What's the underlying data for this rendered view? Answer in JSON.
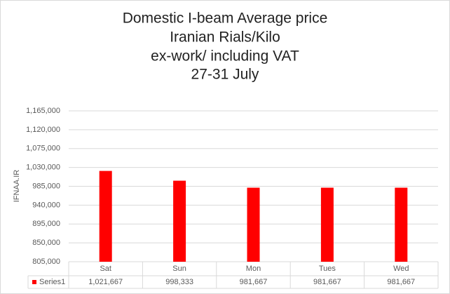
{
  "chart_data": {
    "type": "bar",
    "title": [
      "Domestic I-beam Average price",
      "Iranian Rials/Kilo",
      "ex-work/ including VAT",
      "27-31 July"
    ],
    "y_label": "IFNAA.IR",
    "categories": [
      "Sat",
      "Sun",
      "Mon",
      "Tues",
      "Wed"
    ],
    "series": [
      {
        "name": "Series1",
        "color": "#ff0000",
        "values": [
          1021667,
          998333,
          981667,
          981667,
          981667
        ],
        "value_labels": [
          "1,021,667",
          "998,333",
          "981,667",
          "981,667",
          "981,667"
        ]
      }
    ],
    "ylim": [
      805000,
      1165000
    ],
    "yticks": [
      {
        "value": 805000,
        "label": "805,000"
      },
      {
        "value": 850000,
        "label": "850,000"
      },
      {
        "value": 895000,
        "label": "895,000"
      },
      {
        "value": 940000,
        "label": "940,000"
      },
      {
        "value": 985000,
        "label": "985,000"
      },
      {
        "value": 1030000,
        "label": "1,030,000"
      },
      {
        "value": 1075000,
        "label": "1,075,000"
      },
      {
        "value": 1120000,
        "label": "1,120,000"
      },
      {
        "value": 1165000,
        "label": "1,165,000"
      }
    ],
    "grid": true
  }
}
